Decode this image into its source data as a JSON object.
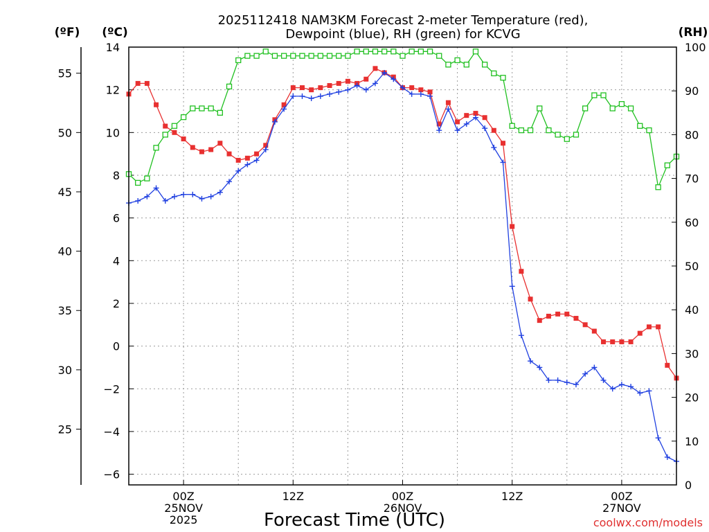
{
  "chart_data": {
    "type": "line",
    "title_line1": "2025112418 NAM3KM Forecast 2-meter Temperature (red),",
    "title_line2": "Dewpoint (blue), RH (green) for KCVG",
    "xlabel": "Forecast Time (UTC)",
    "credit": "coolwx.com/models",
    "left_unit_f": "(ºF)",
    "left_unit_c": "(ºC)",
    "right_unit": "(RH)",
    "x_unit": "forecast hour",
    "xlim": [
      0,
      60
    ],
    "ylim_c": [
      -6.5,
      14
    ],
    "ylim_rh": [
      0,
      100
    ],
    "ylim_f": [
      20.3,
      57.2
    ],
    "c_ticks": [
      "14",
      "12",
      "10",
      "8",
      "6",
      "4",
      "2",
      "0",
      "−2",
      "−4",
      "−6"
    ],
    "c_tick_values": [
      14,
      12,
      10,
      8,
      6,
      4,
      2,
      0,
      -2,
      -4,
      -6
    ],
    "rh_ticks": [
      "100",
      "90",
      "80",
      "70",
      "60",
      "50",
      "40",
      "30",
      "20",
      "10",
      "0"
    ],
    "rh_tick_values": [
      100,
      90,
      80,
      70,
      60,
      50,
      40,
      30,
      20,
      10,
      0
    ],
    "f_ticks": [
      "55",
      "50",
      "45",
      "40",
      "35",
      "30",
      "25"
    ],
    "f_tick_values": [
      55,
      50,
      45,
      40,
      35,
      30,
      25
    ],
    "x_ticks": [
      {
        "hour": 6,
        "lines": [
          "00Z",
          "25NOV",
          "2025"
        ]
      },
      {
        "hour": 18,
        "lines": [
          "12Z"
        ]
      },
      {
        "hour": 30,
        "lines": [
          "00Z",
          "26NOV"
        ]
      },
      {
        "hour": 42,
        "lines": [
          "12Z"
        ]
      },
      {
        "hour": 54,
        "lines": [
          "00Z",
          "27NOV"
        ]
      }
    ],
    "x": [
      0,
      1,
      2,
      3,
      4,
      5,
      6,
      7,
      8,
      9,
      10,
      11,
      12,
      13,
      14,
      15,
      16,
      17,
      18,
      19,
      20,
      21,
      22,
      23,
      24,
      25,
      26,
      27,
      28,
      29,
      30,
      31,
      32,
      33,
      34,
      35,
      36,
      37,
      38,
      39,
      40,
      41,
      42,
      43,
      44,
      45,
      46,
      47,
      48,
      49,
      50,
      51,
      52,
      53,
      54,
      55,
      56,
      57,
      58,
      59,
      60
    ],
    "series": [
      {
        "name": "Temperature (°C)",
        "axis": "c",
        "color": "#e83030",
        "marker": "square-filled",
        "values": [
          11.8,
          12.3,
          12.3,
          11.3,
          10.3,
          10.0,
          9.7,
          9.3,
          9.1,
          9.2,
          9.5,
          9.0,
          8.7,
          8.8,
          9.0,
          9.4,
          10.6,
          11.3,
          12.1,
          12.1,
          12.0,
          12.1,
          12.2,
          12.3,
          12.4,
          12.3,
          12.5,
          13.0,
          12.8,
          12.6,
          12.1,
          12.1,
          12.0,
          11.9,
          10.4,
          11.4,
          10.5,
          10.8,
          10.9,
          10.7,
          10.1,
          9.5,
          5.6,
          3.5,
          2.2,
          1.2,
          1.4,
          1.5,
          1.5,
          1.3,
          1.0,
          0.7,
          0.2,
          0.2,
          0.2,
          0.2,
          0.6,
          0.9,
          0.9,
          -0.9,
          -1.5
        ]
      },
      {
        "name": "Dewpoint (°C)",
        "axis": "c",
        "color": "#2040e0",
        "marker": "plus",
        "values": [
          6.7,
          6.8,
          7.0,
          7.4,
          6.8,
          7.0,
          7.1,
          7.1,
          6.9,
          7.0,
          7.2,
          7.7,
          8.2,
          8.5,
          8.7,
          9.2,
          10.5,
          11.1,
          11.7,
          11.7,
          11.6,
          11.7,
          11.8,
          11.9,
          12.0,
          12.2,
          12.0,
          12.3,
          12.8,
          12.5,
          12.1,
          11.8,
          11.8,
          11.7,
          10.1,
          11.1,
          10.1,
          10.4,
          10.7,
          10.2,
          9.3,
          8.6,
          2.8,
          0.5,
          -0.7,
          -1.0,
          -1.6,
          -1.6,
          -1.7,
          -1.8,
          -1.3,
          -1.0,
          -1.6,
          -2.0,
          -1.8,
          -1.9,
          -2.2,
          -2.1,
          -4.3,
          -5.2,
          -5.4
        ]
      },
      {
        "name": "RH (%)",
        "axis": "rh",
        "color": "#20c020",
        "marker": "square-open",
        "values": [
          71,
          69,
          70,
          77,
          80,
          82,
          84,
          86,
          86,
          86,
          85,
          91,
          97,
          98,
          98,
          99,
          98,
          98,
          98,
          98,
          98,
          98,
          98,
          98,
          98,
          99,
          99,
          99,
          99,
          99,
          98,
          99,
          99,
          99,
          98,
          96,
          97,
          96,
          99,
          96,
          94,
          93,
          82,
          81,
          81,
          86,
          81,
          80,
          79,
          80,
          86,
          89,
          89,
          86,
          87,
          86,
          82,
          81,
          68,
          73,
          75
        ]
      }
    ]
  }
}
